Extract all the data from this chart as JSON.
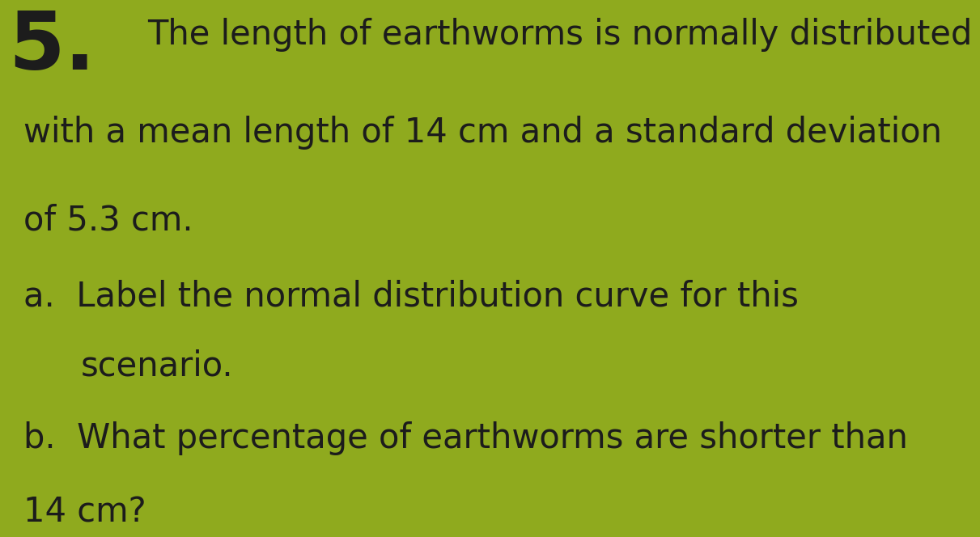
{
  "background_color": "#8faa1e",
  "number": "5.",
  "line1": "The length of earthworms is normally distributed",
  "line2": "with a mean length of 14 cm and a standard deviation",
  "line3": "of 5.3 cm.",
  "line4a": "a.  Label the normal distribution curve for this",
  "line5a": "scenario.",
  "line4b": "b.  What percentage of earthworms are shorter than",
  "line5b": "14 cm?",
  "text_color": "#1c1c1c",
  "font_size_number": 72,
  "font_size_text": 30,
  "font_family": "DejaVu Sans"
}
